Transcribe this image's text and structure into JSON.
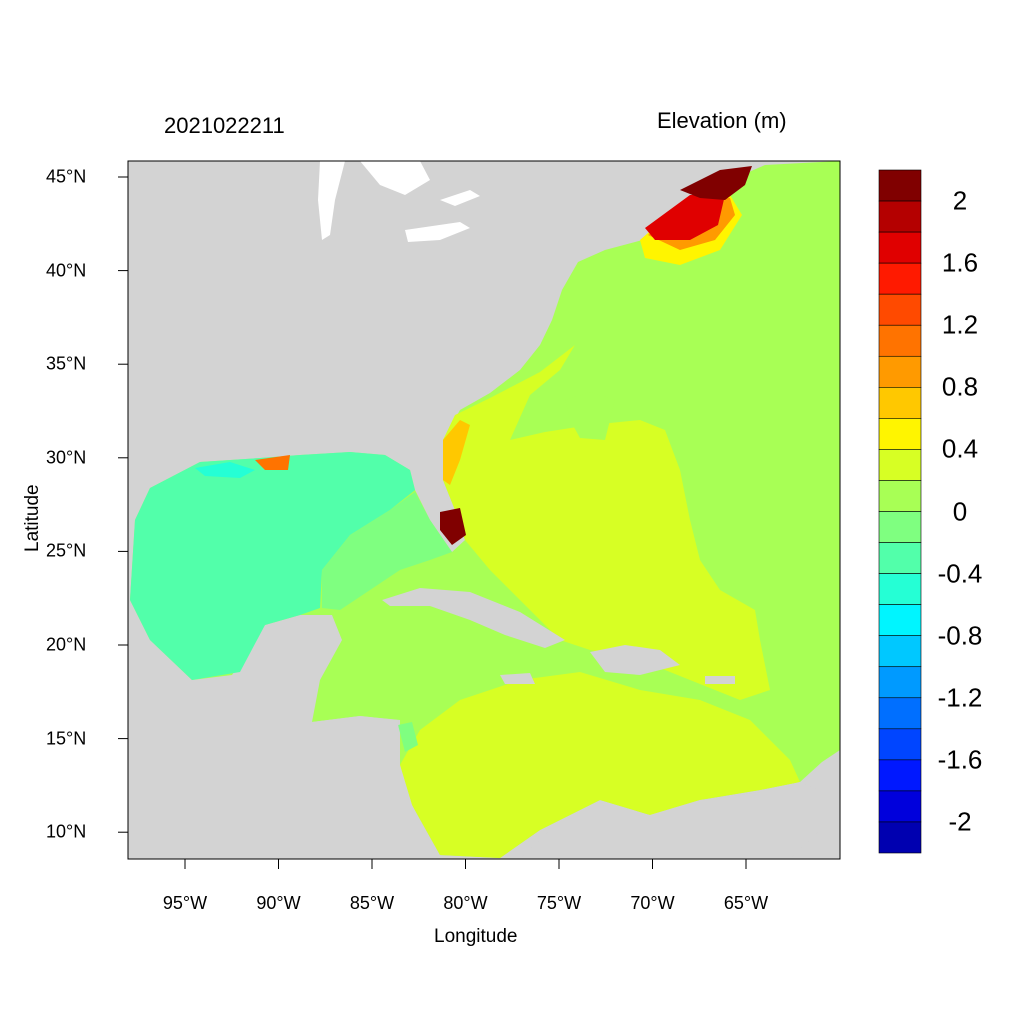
{
  "title_left": "2021022211",
  "title_right": "Elevation (m)",
  "xlabel": "Longitude",
  "ylabel": "Latitude",
  "y_ticks": [
    "45°N",
    "40°N",
    "35°N",
    "30°N",
    "25°N",
    "20°N",
    "15°N",
    "10°N"
  ],
  "x_ticks": [
    "95°W",
    "90°W",
    "85°W",
    "80°W",
    "75°W",
    "70°W",
    "65°W"
  ],
  "colorbar": {
    "labels": [
      "2",
      "1.6",
      "1.2",
      "0.8",
      "0.4",
      "0",
      "-0.4",
      "-0.8",
      "-1.2",
      "-1.6",
      "-2"
    ],
    "colors": [
      "#800000",
      "#B40000",
      "#E00000",
      "#FF1A00",
      "#FF4A00",
      "#FF7300",
      "#FF9A00",
      "#FFC800",
      "#FFF500",
      "#D7FF24",
      "#A8FF55",
      "#7FFF80",
      "#52FFAA",
      "#25FFD5",
      "#00F5FF",
      "#00C8FF",
      "#009AFF",
      "#006FFF",
      "#0045FF",
      "#0018FF",
      "#0000DC",
      "#0000B0"
    ]
  },
  "colors": {
    "land": "#D3D3D3",
    "coast": "#FFFFFF"
  }
}
